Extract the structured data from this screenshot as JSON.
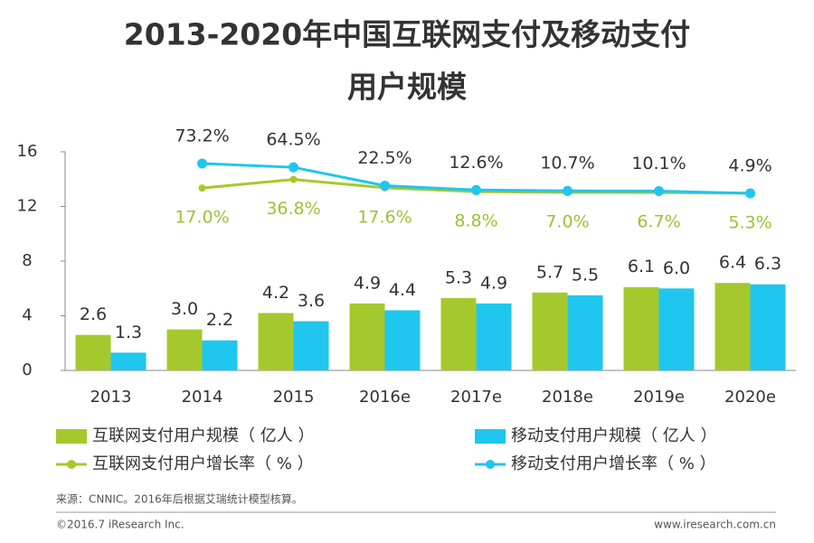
{
  "chart_data": {
    "type": "bar",
    "title": [
      "2013-2020年中国互联网支付及移动支付",
      "用户规模"
    ],
    "categories": [
      "2013",
      "2014",
      "2015",
      "2016e",
      "2017e",
      "2018e",
      "2019e",
      "2020e"
    ],
    "ylim": [
      0,
      16
    ],
    "yticks": [
      0,
      4,
      8,
      12,
      16
    ],
    "y2lim": [
      -400,
      100
    ],
    "series": [
      {
        "name": "互联网支付用户规模（ 亿人 ）",
        "type": "bar",
        "color": "#a5c92c",
        "values": [
          2.6,
          3.0,
          4.2,
          4.9,
          5.3,
          5.7,
          6.1,
          6.4
        ],
        "value_labels": [
          "2.6",
          "3.0",
          "4.2",
          "4.9",
          "5.3",
          "5.7",
          "6.1",
          "6.4"
        ]
      },
      {
        "name": "移动支付用户规模（ 亿人 ）",
        "type": "bar",
        "color": "#1fc6ee",
        "values": [
          1.3,
          2.2,
          3.6,
          4.4,
          4.9,
          5.5,
          6.0,
          6.3
        ],
        "value_labels": [
          "1.3",
          "2.2",
          "3.6",
          "4.4",
          "4.9",
          "5.5",
          "6.0",
          "6.3"
        ]
      },
      {
        "name": "互联网支付用户增长率（ % ）",
        "type": "line",
        "axis": "y2",
        "color": "#a5c92c",
        "values": [
          null,
          17.0,
          36.8,
          17.6,
          8.8,
          7.0,
          6.7,
          5.3
        ],
        "value_labels": [
          null,
          "17.0%",
          "36.8%",
          "17.6%",
          "8.8%",
          "7.0%",
          "6.7%",
          "5.3%"
        ]
      },
      {
        "name": "移动支付用户增长率（ % ）",
        "type": "line",
        "axis": "y2",
        "color": "#1fc6ee",
        "values": [
          null,
          73.2,
          64.5,
          22.5,
          12.6,
          10.7,
          10.1,
          4.9
        ],
        "value_labels": [
          null,
          "73.2%",
          "64.5%",
          "22.5%",
          "12.6%",
          "10.7%",
          "10.1%",
          "4.9%"
        ]
      }
    ],
    "source": "来源：CNNIC。2016年后根据艾瑞统计模型核算。",
    "copyright": "©2016.7 iResearch Inc.",
    "website": "www.iresearch.com.cn"
  }
}
